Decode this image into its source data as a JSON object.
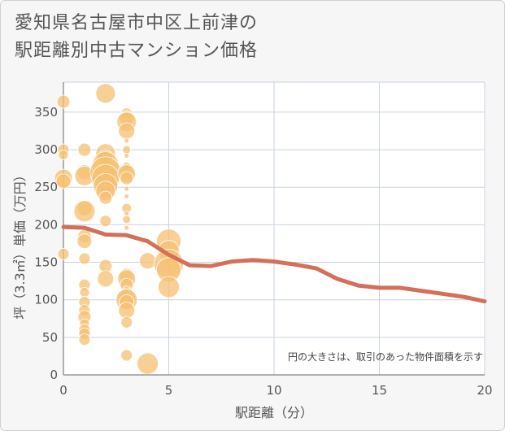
{
  "title_lines": [
    "愛知県名古屋市中区上前津の",
    "駅距離別中古マンション価格"
  ],
  "chart_data": {
    "type": "scatter",
    "xlabel": "駅距離（分）",
    "ylabel": "坪（3.3㎡）単価（万円）",
    "xlim": [
      0,
      20
    ],
    "ylim": [
      0,
      390
    ],
    "xticks": [
      0,
      5,
      10,
      15,
      20
    ],
    "yticks": [
      0,
      50,
      100,
      150,
      200,
      250,
      300,
      350
    ],
    "grid": true,
    "note": "円の大きさは、取引のあった物件面積を示す",
    "colors": {
      "bubble": "#f5c071",
      "line": "#d4705a",
      "grid": "#c9d2e0"
    },
    "bubbles": [
      {
        "x": 0,
        "y": 364,
        "r": 8
      },
      {
        "x": 0,
        "y": 300,
        "r": 7
      },
      {
        "x": 0,
        "y": 293,
        "r": 6
      },
      {
        "x": 0,
        "y": 262,
        "r": 11
      },
      {
        "x": 0,
        "y": 258,
        "r": 9
      },
      {
        "x": 0,
        "y": 161,
        "r": 7
      },
      {
        "x": 1,
        "y": 300,
        "r": 8
      },
      {
        "x": 1,
        "y": 270,
        "r": 9
      },
      {
        "x": 1,
        "y": 265,
        "r": 12
      },
      {
        "x": 1,
        "y": 222,
        "r": 9
      },
      {
        "x": 1,
        "y": 218,
        "r": 13
      },
      {
        "x": 1,
        "y": 185,
        "r": 8
      },
      {
        "x": 1,
        "y": 178,
        "r": 9
      },
      {
        "x": 1,
        "y": 155,
        "r": 7
      },
      {
        "x": 1,
        "y": 120,
        "r": 7
      },
      {
        "x": 1,
        "y": 110,
        "r": 6
      },
      {
        "x": 1,
        "y": 97,
        "r": 7
      },
      {
        "x": 1,
        "y": 86,
        "r": 7
      },
      {
        "x": 1,
        "y": 77,
        "r": 8
      },
      {
        "x": 1,
        "y": 68,
        "r": 6
      },
      {
        "x": 1,
        "y": 60,
        "r": 7
      },
      {
        "x": 1,
        "y": 55,
        "r": 7
      },
      {
        "x": 1,
        "y": 47,
        "r": 7
      },
      {
        "x": 2,
        "y": 375,
        "r": 12
      },
      {
        "x": 2,
        "y": 295,
        "r": 12
      },
      {
        "x": 2,
        "y": 290,
        "r": 9
      },
      {
        "x": 2,
        "y": 280,
        "r": 16
      },
      {
        "x": 2,
        "y": 270,
        "r": 19
      },
      {
        "x": 2,
        "y": 262,
        "r": 17
      },
      {
        "x": 2,
        "y": 252,
        "r": 15
      },
      {
        "x": 2,
        "y": 245,
        "r": 12
      },
      {
        "x": 2,
        "y": 236,
        "r": 8
      },
      {
        "x": 2,
        "y": 205,
        "r": 7
      },
      {
        "x": 2,
        "y": 145,
        "r": 8
      },
      {
        "x": 2,
        "y": 128,
        "r": 10
      },
      {
        "x": 3,
        "y": 348,
        "r": 7
      },
      {
        "x": 3,
        "y": 342,
        "r": 9
      },
      {
        "x": 3,
        "y": 337,
        "r": 12
      },
      {
        "x": 3,
        "y": 325,
        "r": 10
      },
      {
        "x": 3,
        "y": 312,
        "r": 3
      },
      {
        "x": 3,
        "y": 300,
        "r": 5
      },
      {
        "x": 3,
        "y": 292,
        "r": 3
      },
      {
        "x": 3,
        "y": 278,
        "r": 5
      },
      {
        "x": 3,
        "y": 270,
        "r": 9
      },
      {
        "x": 3,
        "y": 268,
        "r": 11
      },
      {
        "x": 3,
        "y": 262,
        "r": 8
      },
      {
        "x": 3,
        "y": 248,
        "r": 3
      },
      {
        "x": 3,
        "y": 238,
        "r": 3
      },
      {
        "x": 3,
        "y": 222,
        "r": 6
      },
      {
        "x": 3,
        "y": 215,
        "r": 3
      },
      {
        "x": 3,
        "y": 207,
        "r": 5
      },
      {
        "x": 3,
        "y": 196,
        "r": 3
      },
      {
        "x": 3,
        "y": 132,
        "r": 9
      },
      {
        "x": 3,
        "y": 128,
        "r": 11
      },
      {
        "x": 3,
        "y": 120,
        "r": 8
      },
      {
        "x": 3,
        "y": 113,
        "r": 5
      },
      {
        "x": 3,
        "y": 104,
        "r": 11
      },
      {
        "x": 3,
        "y": 100,
        "r": 13
      },
      {
        "x": 3,
        "y": 97,
        "r": 9
      },
      {
        "x": 3,
        "y": 86,
        "r": 10
      },
      {
        "x": 3,
        "y": 70,
        "r": 7
      },
      {
        "x": 3,
        "y": 26,
        "r": 7
      },
      {
        "x": 4,
        "y": 152,
        "r": 10
      },
      {
        "x": 4,
        "y": 15,
        "r": 13
      },
      {
        "x": 5,
        "y": 178,
        "r": 15
      },
      {
        "x": 5,
        "y": 165,
        "r": 13
      },
      {
        "x": 5,
        "y": 148,
        "r": 18
      },
      {
        "x": 5,
        "y": 140,
        "r": 15
      },
      {
        "x": 5,
        "y": 117,
        "r": 13
      }
    ],
    "line": {
      "x": [
        0,
        1,
        2,
        3,
        4,
        5,
        6,
        7,
        8,
        9,
        10,
        11,
        12,
        13,
        14,
        15,
        16,
        17,
        18,
        19,
        20
      ],
      "y": [
        197,
        196,
        187,
        186,
        178,
        160,
        146,
        145,
        151,
        153,
        151,
        147,
        142,
        128,
        119,
        116,
        116,
        112,
        108,
        104,
        98
      ]
    }
  }
}
